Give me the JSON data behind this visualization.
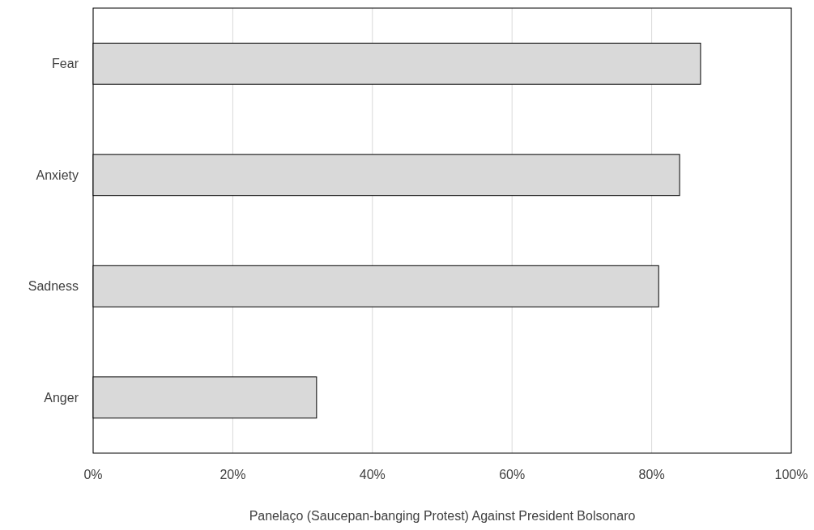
{
  "chart_data": {
    "type": "bar",
    "orientation": "horizontal",
    "xlabel": "Panelaço (Saucepan-banging Protest) Against President Bolsonaro",
    "categories": [
      "Fear",
      "Anxiety",
      "Sadness",
      "Anger"
    ],
    "values": [
      87,
      84,
      81,
      32
    ],
    "color": "#d9d9d9",
    "xlim": [
      0,
      100
    ],
    "xticks": [
      {
        "value": 0,
        "label": "0%"
      },
      {
        "value": 20,
        "label": "20%"
      },
      {
        "value": 40,
        "label": "40%"
      },
      {
        "value": 60,
        "label": "60%"
      },
      {
        "value": 80,
        "label": "80%"
      },
      {
        "value": 100,
        "label": "100%"
      }
    ],
    "grid": "x"
  }
}
